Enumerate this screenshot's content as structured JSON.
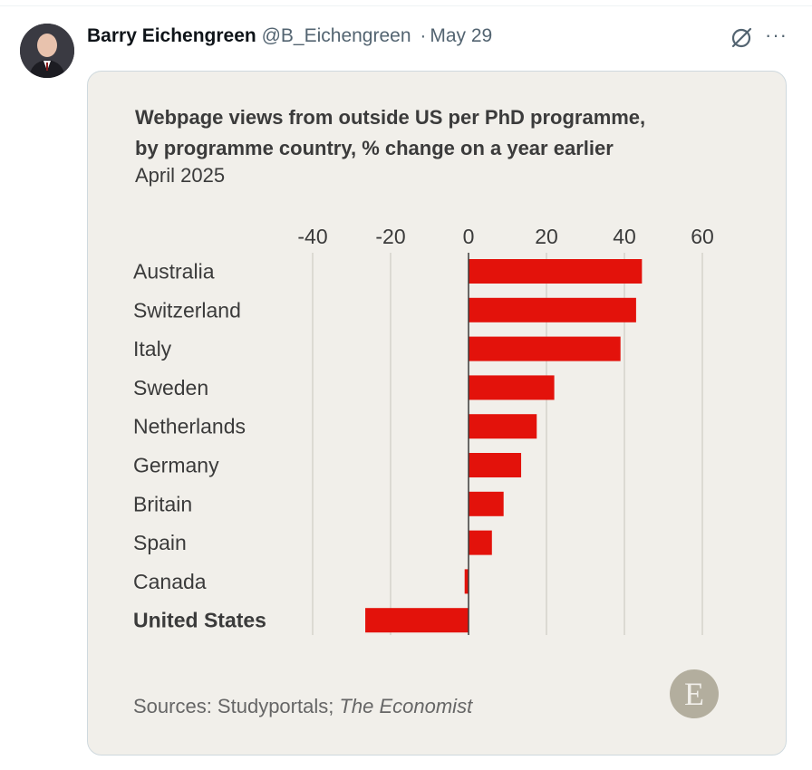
{
  "tweet": {
    "author_name": "Barry Eichengreen",
    "author_handle": "@B_Eichengreen",
    "separator": "·",
    "date": "May 29",
    "more_label": "···"
  },
  "chart_card": {
    "title_line1": "Webpage views from outside US per PhD programme,",
    "title_line2": "by programme country, % change on a year earlier",
    "subtitle": "April 2025",
    "source_prefix": "Sources: Studyportals; ",
    "source_italic": "The Economist",
    "logo_letter": "E"
  },
  "chart_data": {
    "type": "bar",
    "orientation": "horizontal",
    "title": "Webpage views from outside US per PhD programme, by programme country, % change on a year earlier",
    "subtitle": "April 2025",
    "categories": [
      "Australia",
      "Switzerland",
      "Italy",
      "Sweden",
      "Netherlands",
      "Germany",
      "Britain",
      "Spain",
      "Canada",
      "United States"
    ],
    "values": [
      44.5,
      43,
      39,
      22,
      17.5,
      13.5,
      9,
      6,
      -1,
      -26.5
    ],
    "highlight_category": "United States",
    "xlim": [
      -40,
      60
    ],
    "xticks": [
      "-40",
      "-20",
      "0",
      "20",
      "40",
      "60"
    ],
    "tick_values": [
      -40,
      -20,
      0,
      20,
      40,
      60
    ],
    "bar_color": "#e3120b",
    "gridlines": true
  }
}
